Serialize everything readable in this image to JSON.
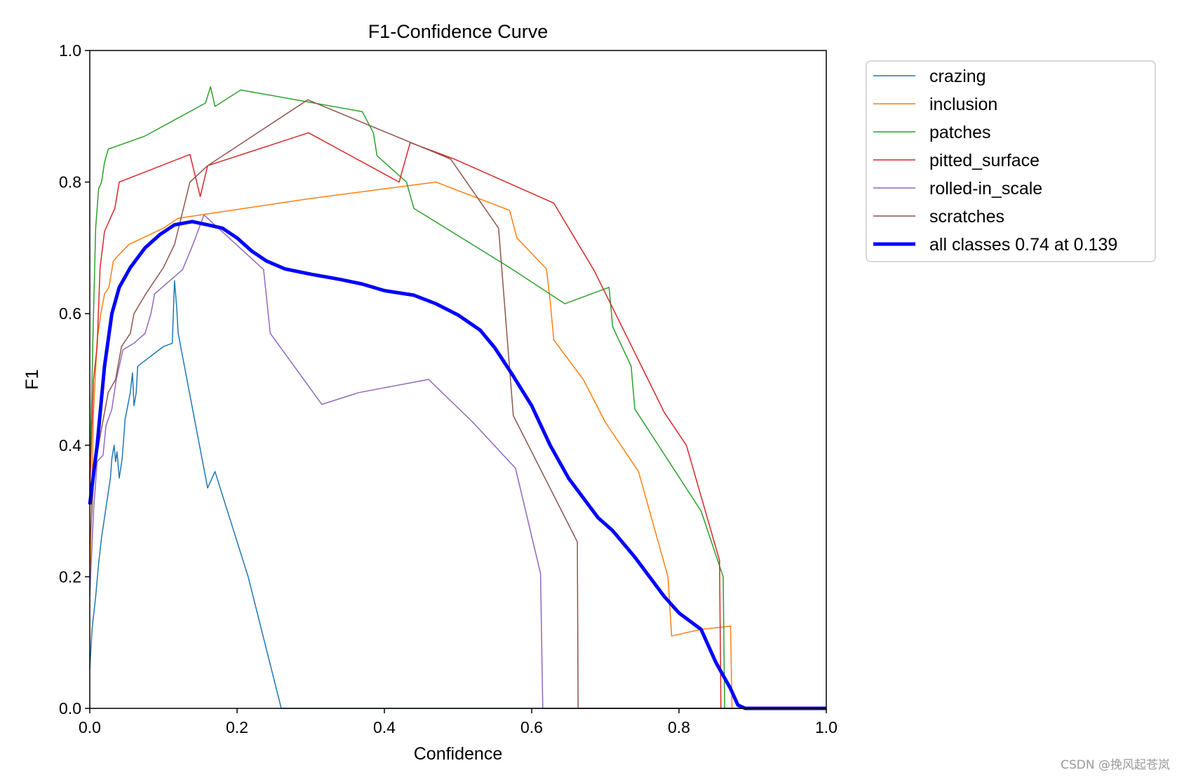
{
  "watermark": "CSDN @挽风起苍岚",
  "chart_data": {
    "type": "line",
    "title": "F1-Confidence Curve",
    "xlabel": "Confidence",
    "ylabel": "F1",
    "xlim": [
      0,
      1
    ],
    "ylim": [
      0,
      1
    ],
    "xticks": [
      "0.0",
      "0.2",
      "0.4",
      "0.6",
      "0.8",
      "1.0"
    ],
    "yticks": [
      "0.0",
      "0.2",
      "0.4",
      "0.6",
      "0.8",
      "1.0"
    ],
    "grid": false,
    "legend_position": "outside-top-right",
    "series": [
      {
        "name": "crazing",
        "color": "#1f77b4",
        "width": 1.5,
        "points": [
          [
            0,
            0.06
          ],
          [
            0.003,
            0.12
          ],
          [
            0.008,
            0.17
          ],
          [
            0.012,
            0.22
          ],
          [
            0.016,
            0.26
          ],
          [
            0.02,
            0.29
          ],
          [
            0.024,
            0.32
          ],
          [
            0.028,
            0.35
          ],
          [
            0.03,
            0.38
          ],
          [
            0.033,
            0.4
          ],
          [
            0.035,
            0.375
          ],
          [
            0.037,
            0.39
          ],
          [
            0.04,
            0.35
          ],
          [
            0.044,
            0.38
          ],
          [
            0.048,
            0.44
          ],
          [
            0.055,
            0.48
          ],
          [
            0.058,
            0.51
          ],
          [
            0.06,
            0.46
          ],
          [
            0.063,
            0.48
          ],
          [
            0.065,
            0.52
          ],
          [
            0.1,
            0.55
          ],
          [
            0.112,
            0.555
          ],
          [
            0.115,
            0.65
          ],
          [
            0.118,
            0.61
          ],
          [
            0.12,
            0.57
          ],
          [
            0.16,
            0.335
          ],
          [
            0.17,
            0.36
          ],
          [
            0.215,
            0.2
          ],
          [
            0.26,
            0.0
          ],
          [
            1.0,
            0.0
          ]
        ]
      },
      {
        "name": "inclusion",
        "color": "#ff7f0e",
        "width": 1.5,
        "points": [
          [
            0,
            0.18
          ],
          [
            0.005,
            0.45
          ],
          [
            0.01,
            0.56
          ],
          [
            0.015,
            0.6
          ],
          [
            0.02,
            0.63
          ],
          [
            0.026,
            0.64
          ],
          [
            0.032,
            0.68
          ],
          [
            0.04,
            0.69
          ],
          [
            0.053,
            0.705
          ],
          [
            0.1,
            0.73
          ],
          [
            0.12,
            0.745
          ],
          [
            0.3,
            0.775
          ],
          [
            0.47,
            0.8
          ],
          [
            0.57,
            0.757
          ],
          [
            0.58,
            0.715
          ],
          [
            0.62,
            0.668
          ],
          [
            0.625,
            0.62
          ],
          [
            0.63,
            0.56
          ],
          [
            0.67,
            0.5
          ],
          [
            0.7,
            0.435
          ],
          [
            0.745,
            0.36
          ],
          [
            0.765,
            0.28
          ],
          [
            0.785,
            0.2
          ],
          [
            0.79,
            0.11
          ],
          [
            0.83,
            0.12
          ],
          [
            0.87,
            0.125
          ],
          [
            0.872,
            0.0
          ],
          [
            1.0,
            0.0
          ]
        ]
      },
      {
        "name": "patches",
        "color": "#2ca02c",
        "width": 1.5,
        "points": [
          [
            0,
            0.35
          ],
          [
            0.005,
            0.6
          ],
          [
            0.008,
            0.73
          ],
          [
            0.012,
            0.79
          ],
          [
            0.016,
            0.8
          ],
          [
            0.02,
            0.83
          ],
          [
            0.025,
            0.85
          ],
          [
            0.075,
            0.87
          ],
          [
            0.157,
            0.92
          ],
          [
            0.164,
            0.945
          ],
          [
            0.17,
            0.915
          ],
          [
            0.205,
            0.94
          ],
          [
            0.37,
            0.907
          ],
          [
            0.385,
            0.875
          ],
          [
            0.39,
            0.84
          ],
          [
            0.43,
            0.8
          ],
          [
            0.44,
            0.76
          ],
          [
            0.57,
            0.67
          ],
          [
            0.645,
            0.615
          ],
          [
            0.705,
            0.64
          ],
          [
            0.71,
            0.58
          ],
          [
            0.735,
            0.52
          ],
          [
            0.74,
            0.455
          ],
          [
            0.83,
            0.3
          ],
          [
            0.86,
            0.2
          ],
          [
            0.862,
            0.0
          ],
          [
            1.0,
            0.0
          ]
        ]
      },
      {
        "name": "pitted_surface",
        "color": "#d62728",
        "width": 1.5,
        "points": [
          [
            0,
            0.33
          ],
          [
            0.005,
            0.5
          ],
          [
            0.01,
            0.55
          ],
          [
            0.014,
            0.67
          ],
          [
            0.02,
            0.725
          ],
          [
            0.034,
            0.76
          ],
          [
            0.04,
            0.8
          ],
          [
            0.136,
            0.842
          ],
          [
            0.15,
            0.778
          ],
          [
            0.16,
            0.825
          ],
          [
            0.297,
            0.875
          ],
          [
            0.42,
            0.8
          ],
          [
            0.435,
            0.86
          ],
          [
            0.495,
            0.835
          ],
          [
            0.63,
            0.768
          ],
          [
            0.685,
            0.665
          ],
          [
            0.78,
            0.45
          ],
          [
            0.81,
            0.4
          ],
          [
            0.855,
            0.225
          ],
          [
            0.857,
            0.0
          ],
          [
            1.0,
            0.0
          ]
        ]
      },
      {
        "name": "rolled-in_scale",
        "color": "#9467bd",
        "width": 1.5,
        "points": [
          [
            0,
            0.17
          ],
          [
            0.005,
            0.3
          ],
          [
            0.01,
            0.375
          ],
          [
            0.018,
            0.385
          ],
          [
            0.022,
            0.43
          ],
          [
            0.03,
            0.455
          ],
          [
            0.036,
            0.5
          ],
          [
            0.045,
            0.545
          ],
          [
            0.06,
            0.555
          ],
          [
            0.075,
            0.57
          ],
          [
            0.083,
            0.6
          ],
          [
            0.088,
            0.63
          ],
          [
            0.126,
            0.667
          ],
          [
            0.14,
            0.705
          ],
          [
            0.155,
            0.75
          ],
          [
            0.236,
            0.667
          ],
          [
            0.245,
            0.57
          ],
          [
            0.315,
            0.462
          ],
          [
            0.365,
            0.48
          ],
          [
            0.46,
            0.5
          ],
          [
            0.52,
            0.435
          ],
          [
            0.578,
            0.365
          ],
          [
            0.612,
            0.205
          ],
          [
            0.615,
            0.0
          ],
          [
            1.0,
            0.0
          ]
        ]
      },
      {
        "name": "scratches",
        "color": "#8c564b",
        "width": 1.5,
        "points": [
          [
            0,
            0.25
          ],
          [
            0.006,
            0.36
          ],
          [
            0.015,
            0.42
          ],
          [
            0.025,
            0.48
          ],
          [
            0.035,
            0.5
          ],
          [
            0.043,
            0.55
          ],
          [
            0.055,
            0.57
          ],
          [
            0.06,
            0.6
          ],
          [
            0.076,
            0.63
          ],
          [
            0.1,
            0.67
          ],
          [
            0.115,
            0.705
          ],
          [
            0.136,
            0.8
          ],
          [
            0.16,
            0.825
          ],
          [
            0.296,
            0.925
          ],
          [
            0.49,
            0.835
          ],
          [
            0.555,
            0.73
          ],
          [
            0.575,
            0.445
          ],
          [
            0.662,
            0.253
          ],
          [
            0.663,
            0.0
          ],
          [
            1.0,
            0.0
          ]
        ]
      },
      {
        "name": "all classes 0.74 at 0.139",
        "color": "#0000ff",
        "width": 5,
        "points": [
          [
            0,
            0.31
          ],
          [
            0.01,
            0.4
          ],
          [
            0.02,
            0.52
          ],
          [
            0.03,
            0.6
          ],
          [
            0.04,
            0.64
          ],
          [
            0.055,
            0.67
          ],
          [
            0.075,
            0.7
          ],
          [
            0.095,
            0.72
          ],
          [
            0.115,
            0.735
          ],
          [
            0.139,
            0.74
          ],
          [
            0.16,
            0.735
          ],
          [
            0.18,
            0.73
          ],
          [
            0.2,
            0.715
          ],
          [
            0.22,
            0.695
          ],
          [
            0.24,
            0.68
          ],
          [
            0.265,
            0.668
          ],
          [
            0.3,
            0.66
          ],
          [
            0.34,
            0.652
          ],
          [
            0.37,
            0.645
          ],
          [
            0.4,
            0.635
          ],
          [
            0.44,
            0.628
          ],
          [
            0.47,
            0.615
          ],
          [
            0.5,
            0.598
          ],
          [
            0.53,
            0.575
          ],
          [
            0.55,
            0.548
          ],
          [
            0.575,
            0.505
          ],
          [
            0.6,
            0.46
          ],
          [
            0.625,
            0.4
          ],
          [
            0.65,
            0.35
          ],
          [
            0.69,
            0.29
          ],
          [
            0.71,
            0.27
          ],
          [
            0.74,
            0.23
          ],
          [
            0.78,
            0.17
          ],
          [
            0.8,
            0.145
          ],
          [
            0.83,
            0.12
          ],
          [
            0.85,
            0.07
          ],
          [
            0.87,
            0.03
          ],
          [
            0.88,
            0.005
          ],
          [
            0.89,
            0.0
          ],
          [
            1.0,
            0.0
          ]
        ]
      }
    ]
  }
}
